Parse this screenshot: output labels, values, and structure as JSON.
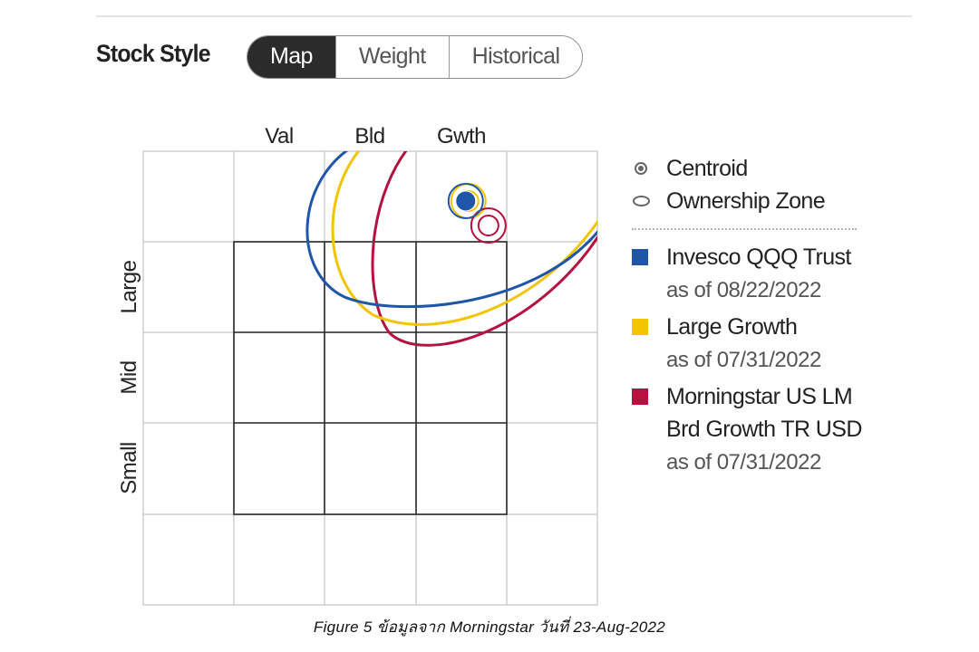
{
  "header": {
    "title": "Stock Style",
    "tabs": [
      {
        "label": "Map",
        "active": true
      },
      {
        "label": "Weight",
        "active": false
      },
      {
        "label": "Historical",
        "active": false
      }
    ]
  },
  "legend": {
    "centroid_label": "Centroid",
    "zone_label": "Ownership Zone",
    "series": [
      {
        "name": "Invesco QQQ Trust",
        "date": "as of 08/22/2022",
        "color": "#1f56a8"
      },
      {
        "name": "Large Growth",
        "date": "as of 07/31/2022",
        "color": "#f2c500"
      },
      {
        "name": "Morningstar US LM Brd Growth TR USD",
        "date": "as of 07/31/2022",
        "color": "#b5123f"
      }
    ]
  },
  "chart_data": {
    "type": "scatter",
    "title": "",
    "x_categories": [
      "Val",
      "Bld",
      "Gwth"
    ],
    "y_categories": [
      "Large",
      "Mid",
      "Small"
    ],
    "grid": true,
    "legend_position": "right",
    "series": [
      {
        "name": "Invesco QQQ Trust",
        "centroid": {
          "x": 2.55,
          "y": 3.45
        },
        "color": "#1f56a8"
      },
      {
        "name": "Large Growth",
        "centroid": {
          "x": 2.58,
          "y": 3.45
        },
        "color": "#f2c500"
      },
      {
        "name": "Morningstar US LM Brd Growth TR USD",
        "centroid": {
          "x": 2.8,
          "y": 3.18
        },
        "color": "#b5123f"
      }
    ]
  },
  "caption": "Figure 5 ข้อมูลจาก Morningstar วันที่ 23-Aug-2022"
}
